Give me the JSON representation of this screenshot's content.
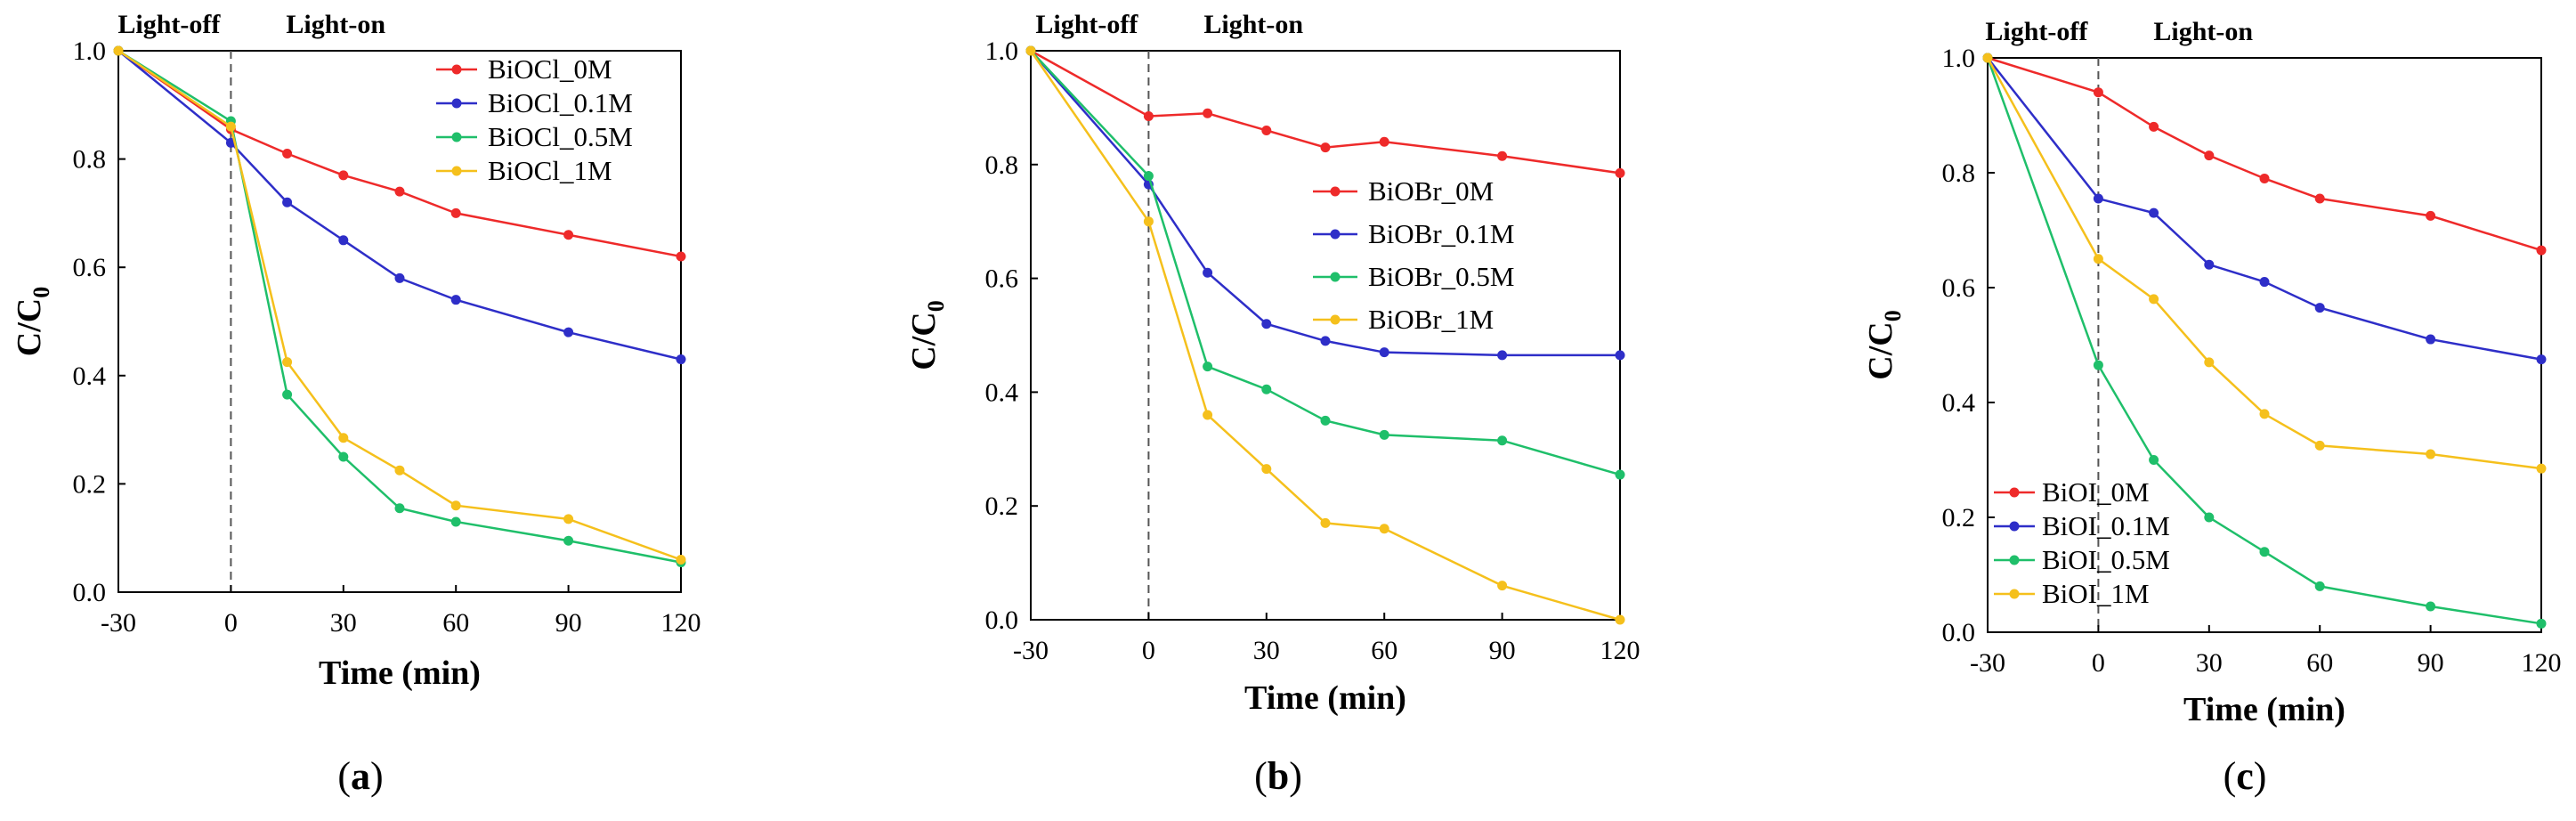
{
  "figure": {
    "panels": [
      {
        "caption_open": "(",
        "caption_letter": "a",
        "caption_close": ")"
      },
      {
        "caption_open": "(",
        "caption_letter": "b",
        "caption_close": ")"
      },
      {
        "caption_open": "(",
        "caption_letter": "c",
        "caption_close": ")"
      }
    ]
  },
  "chart_data": [
    {
      "type": "line",
      "title": "",
      "xlabel": "Time (min)",
      "ylabel": "C/C0",
      "ylabel_main": "C/C",
      "ylabel_sub": "0",
      "x": [
        -30,
        0,
        15,
        30,
        45,
        60,
        90,
        120
      ],
      "xticks": [
        -30,
        0,
        30,
        60,
        90,
        120
      ],
      "xlim": [
        -30,
        120
      ],
      "ylim": [
        0,
        1.0
      ],
      "yticks": [
        "0.0",
        "0.2",
        "0.4",
        "0.6",
        "0.8",
        "1.0"
      ],
      "grid": false,
      "legend": "top-right",
      "annotations": [
        "Light-off",
        "Light-on"
      ],
      "series": [
        {
          "name": "BiOCl_0M",
          "color": "#ee2a2a",
          "values": [
            1.0,
            0.855,
            0.81,
            0.77,
            0.74,
            0.7,
            0.66,
            0.62
          ]
        },
        {
          "name": "BiOCl_0.1M",
          "color": "#2e2ec8",
          "values": [
            1.0,
            0.83,
            0.72,
            0.65,
            0.58,
            0.54,
            0.48,
            0.43
          ]
        },
        {
          "name": "BiOCl_0.5M",
          "color": "#1fbf6a",
          "values": [
            1.0,
            0.87,
            0.365,
            0.25,
            0.155,
            0.13,
            0.095,
            0.055
          ]
        },
        {
          "name": "BiOCl_1M",
          "color": "#f5c01c",
          "values": [
            1.0,
            0.86,
            0.425,
            0.285,
            0.225,
            0.16,
            0.135,
            0.06
          ]
        }
      ]
    },
    {
      "type": "line",
      "title": "",
      "xlabel": "Time (min)",
      "ylabel": "C/C0",
      "ylabel_main": "C/C",
      "ylabel_sub": "0",
      "x": [
        -30,
        0,
        15,
        30,
        45,
        60,
        90,
        120
      ],
      "xticks": [
        -30,
        0,
        30,
        60,
        90,
        120
      ],
      "xlim": [
        -30,
        120
      ],
      "ylim": [
        0,
        1.0
      ],
      "yticks": [
        "0.0",
        "0.2",
        "0.4",
        "0.6",
        "0.8",
        "1.0"
      ],
      "grid": false,
      "legend": "center-right",
      "annotations": [
        "Light-off",
        "Light-on"
      ],
      "series": [
        {
          "name": "BiOBr_0M",
          "color": "#ee2a2a",
          "values": [
            1.0,
            0.885,
            0.89,
            0.86,
            0.83,
            0.84,
            0.815,
            0.785
          ]
        },
        {
          "name": "BiOBr_0.1M",
          "color": "#2e2ec8",
          "values": [
            1.0,
            0.765,
            0.61,
            0.52,
            0.49,
            0.47,
            0.465,
            0.465
          ]
        },
        {
          "name": "BiOBr_0.5M",
          "color": "#1fbf6a",
          "values": [
            1.0,
            0.78,
            0.445,
            0.405,
            0.35,
            0.325,
            0.315,
            0.255
          ]
        },
        {
          "name": "BiOBr_1M",
          "color": "#f5c01c",
          "values": [
            1.0,
            0.7,
            0.36,
            0.265,
            0.17,
            0.16,
            0.06,
            0.0
          ]
        }
      ]
    },
    {
      "type": "line",
      "title": "",
      "xlabel": "Time (min)",
      "ylabel": "C/C0",
      "ylabel_main": "C/C",
      "ylabel_sub": "0",
      "x": [
        -30,
        0,
        15,
        30,
        45,
        60,
        90,
        120
      ],
      "xticks": [
        -30,
        0,
        30,
        60,
        90,
        120
      ],
      "xlim": [
        -30,
        120
      ],
      "ylim": [
        0,
        1.0
      ],
      "yticks": [
        "0.0",
        "0.2",
        "0.4",
        "0.6",
        "0.8",
        "1.0"
      ],
      "grid": false,
      "legend": "bottom-left",
      "annotations": [
        "Light-off",
        "Light-on"
      ],
      "series": [
        {
          "name": "BiOI_0M",
          "color": "#ee2a2a",
          "values": [
            1.0,
            0.94,
            0.88,
            0.83,
            0.79,
            0.755,
            0.725,
            0.665
          ]
        },
        {
          "name": "BiOI_0.1M",
          "color": "#2e2ec8",
          "values": [
            1.0,
            0.755,
            0.73,
            0.64,
            0.61,
            0.565,
            0.51,
            0.475
          ]
        },
        {
          "name": "BiOI_0.5M",
          "color": "#1fbf6a",
          "values": [
            1.0,
            0.465,
            0.3,
            0.2,
            0.14,
            0.08,
            0.045,
            0.015
          ]
        },
        {
          "name": "BiOI_1M",
          "color": "#f5c01c",
          "values": [
            1.0,
            0.65,
            0.58,
            0.47,
            0.38,
            0.325,
            0.31,
            0.285
          ]
        }
      ]
    }
  ]
}
